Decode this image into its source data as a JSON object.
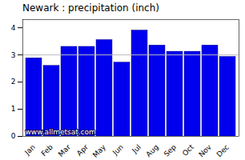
{
  "chart_data": {
    "type": "bar",
    "title": "Newark : precipitation (inch)",
    "categories": [
      "Jan",
      "Feb",
      "Mar",
      "Apr",
      "May",
      "Jun",
      "Jul",
      "Aug",
      "Sep",
      "Oct",
      "Nov",
      "Dec"
    ],
    "values": [
      2.88,
      2.6,
      3.3,
      3.3,
      3.55,
      2.72,
      3.9,
      3.35,
      3.12,
      3.12,
      3.35,
      2.93
    ],
    "color": "#0000EE",
    "ylim": [
      0,
      4.3
    ],
    "yticks": [
      0,
      1,
      2,
      3,
      4
    ],
    "reference_y": 3.0,
    "annotation": "www.allmetsat.com"
  }
}
